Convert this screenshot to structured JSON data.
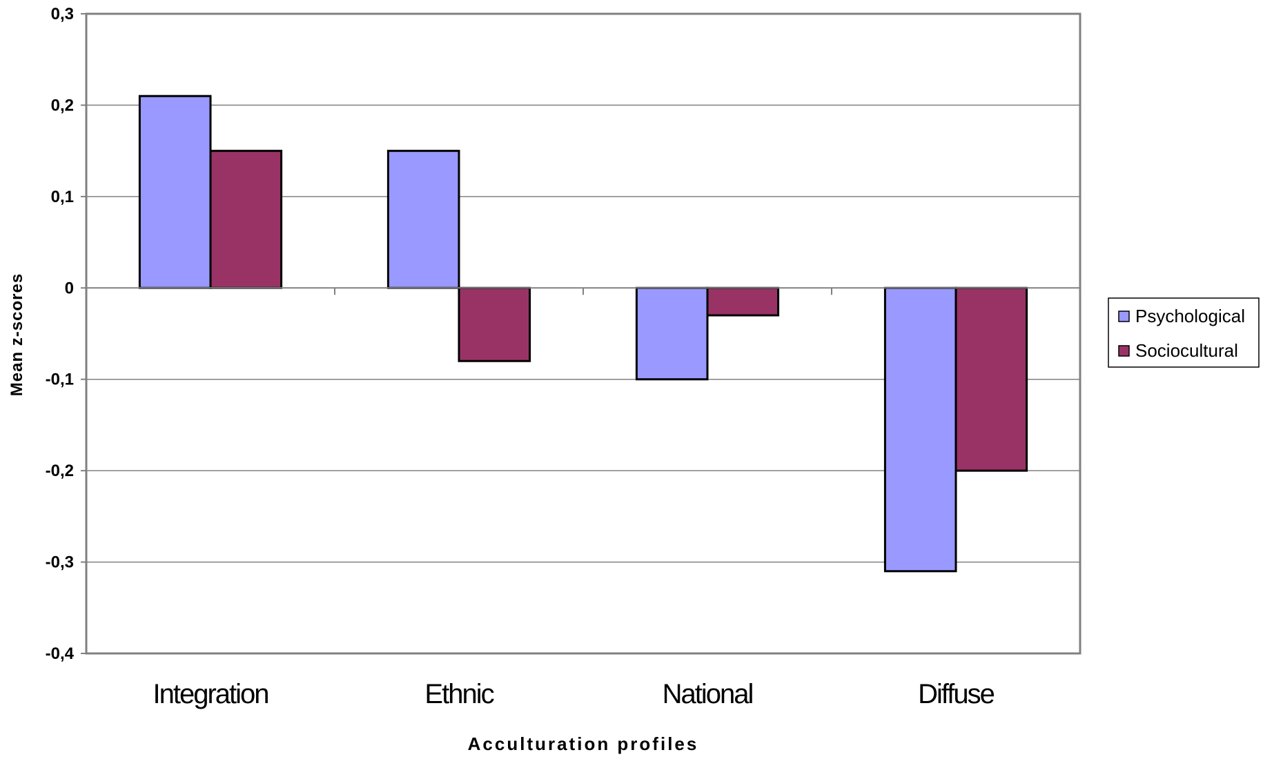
{
  "chart_data": {
    "type": "bar",
    "categories": [
      "Integration",
      "Ethnic",
      "National",
      "Diffuse"
    ],
    "series": [
      {
        "name": "Psychological",
        "color": "#9999ff",
        "values": [
          0.21,
          0.15,
          -0.1,
          -0.31
        ]
      },
      {
        "name": "Sociocultural",
        "color": "#993366",
        "values": [
          0.15,
          -0.08,
          -0.03,
          -0.2
        ]
      }
    ],
    "xlabel": "Acculturation profiles",
    "ylabel": "Mean z-scores",
    "ylim": [
      -0.4,
      0.3
    ],
    "yticks": [
      0.3,
      0.2,
      0.1,
      0,
      -0.1,
      -0.2,
      -0.3,
      -0.4
    ],
    "ytick_labels": [
      "0,3",
      "0,2",
      "0,1",
      "0",
      "-0,1",
      "-0,2",
      "-0,3",
      "-0,4"
    ],
    "grid": true,
    "legend_position": "right"
  }
}
